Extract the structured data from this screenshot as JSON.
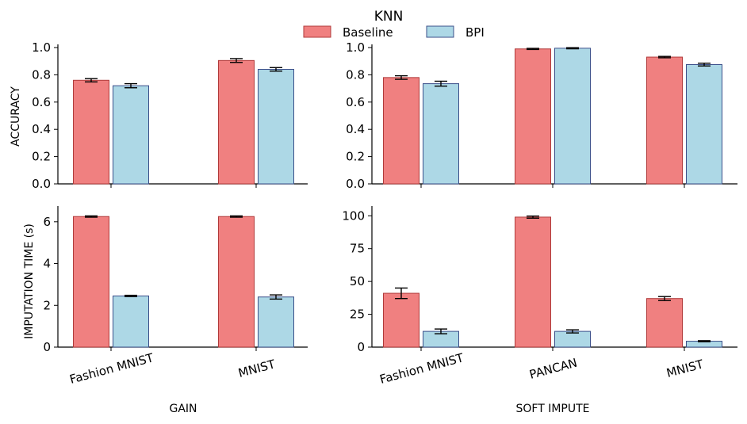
{
  "title": "KNN",
  "legend": [
    {
      "name": "Baseline",
      "color": "#f08080",
      "edge": "#b03a3a"
    },
    {
      "name": "BPI",
      "color": "#add8e6",
      "edge": "#3b4f8a"
    }
  ],
  "ylabels": {
    "top": "ACCURACY",
    "bottom": "IMPUTATION TIME (s)"
  },
  "xlabels": {
    "left": "GAIN",
    "right": "SOFT IMPUTE"
  },
  "chart_data": [
    {
      "type": "bar",
      "panel": "top-left",
      "categories": [
        "Fashion MNIST",
        "MNIST"
      ],
      "series": [
        {
          "name": "Baseline",
          "values": [
            0.76,
            0.905
          ],
          "errors": [
            0.012,
            0.014
          ]
        },
        {
          "name": "BPI",
          "values": [
            0.72,
            0.84
          ],
          "errors": [
            0.015,
            0.013
          ]
        }
      ],
      "ylim": [
        0,
        1.0
      ],
      "yticks": [
        "0.0",
        "0.2",
        "0.4",
        "0.6",
        "0.8",
        "1.0"
      ],
      "ylabel": "ACCURACY",
      "xlabel": ""
    },
    {
      "type": "bar",
      "panel": "top-right",
      "categories": [
        "Fashion MNIST",
        "PANCAN",
        "MNIST"
      ],
      "series": [
        {
          "name": "Baseline",
          "values": [
            0.78,
            0.99,
            0.93
          ],
          "errors": [
            0.013,
            0.004,
            0.005
          ]
        },
        {
          "name": "BPI",
          "values": [
            0.735,
            0.995,
            0.875
          ],
          "errors": [
            0.018,
            0.004,
            0.01
          ]
        }
      ],
      "ylim": [
        0,
        1.0
      ],
      "yticks": [
        "0.0",
        "0.2",
        "0.4",
        "0.6",
        "0.8",
        "1.0"
      ],
      "ylabel": "",
      "xlabel": ""
    },
    {
      "type": "bar",
      "panel": "bottom-left",
      "categories": [
        "Fashion MNIST",
        "MNIST"
      ],
      "series": [
        {
          "name": "Baseline",
          "values": [
            6.25,
            6.25
          ],
          "errors": [
            0.03,
            0.03
          ]
        },
        {
          "name": "BPI",
          "values": [
            2.45,
            2.4
          ],
          "errors": [
            0.03,
            0.1
          ]
        }
      ],
      "ylim": [
        0,
        6.6
      ],
      "yticks": [
        "0",
        "2",
        "4",
        "6"
      ],
      "ylabel": "IMPUTATION TIME (s)",
      "xlabel": "GAIN"
    },
    {
      "type": "bar",
      "panel": "bottom-right",
      "categories": [
        "Fashion MNIST",
        "PANCAN",
        "MNIST"
      ],
      "series": [
        {
          "name": "Baseline",
          "values": [
            41,
            99,
            37
          ],
          "errors": [
            4,
            0.8,
            1.5
          ]
        },
        {
          "name": "BPI",
          "values": [
            12,
            12,
            4.5
          ],
          "errors": [
            1.8,
            1.2,
            0.4
          ]
        }
      ],
      "ylim": [
        0,
        105
      ],
      "yticks": [
        "0",
        "25",
        "50",
        "75",
        "100"
      ],
      "ylabel": "",
      "xlabel": "SOFT IMPUTE"
    }
  ]
}
